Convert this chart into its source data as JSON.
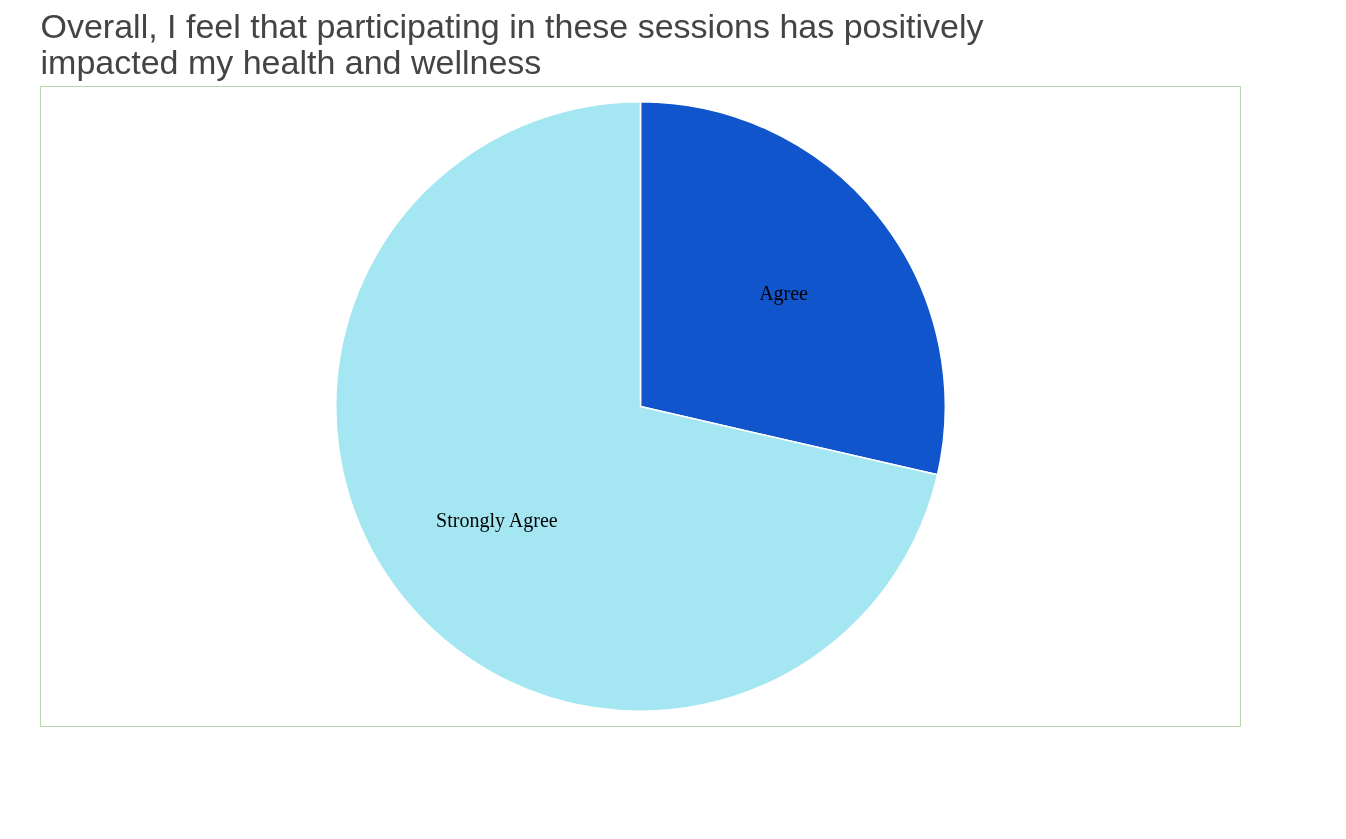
{
  "chart_data": {
    "type": "pie",
    "title": "Overall, I feel that participating in these sessions has positively impacted my health and wellness",
    "categories": [
      "Agree",
      "Strongly Agree"
    ],
    "values": [
      28.6,
      71.4
    ],
    "colors": [
      "#1155cc",
      "#a4e7f2"
    ]
  }
}
